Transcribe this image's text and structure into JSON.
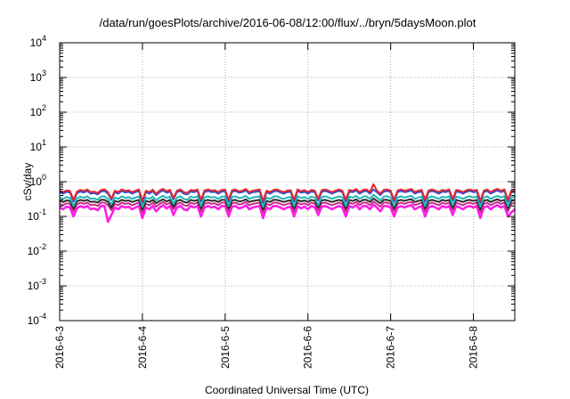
{
  "chart_data": {
    "type": "line",
    "title": "/data/run/goesPlots/archive/2016-06-08/12:00/flux/../bryn/5daysMoon.plot",
    "xlabel": "Coordinated Universal Time (UTC)",
    "ylabel": "cSv/day",
    "y_scale": "log",
    "ylim": [
      0.0001,
      10000
    ],
    "y_ticks": [
      {
        "base": "10",
        "exp": "-4",
        "value": 0.0001
      },
      {
        "base": "10",
        "exp": "-3",
        "value": 0.001
      },
      {
        "base": "10",
        "exp": "-2",
        "value": 0.01
      },
      {
        "base": "10",
        "exp": "-1",
        "value": 0.1
      },
      {
        "base": "10",
        "exp": "0",
        "value": 1
      },
      {
        "base": "10",
        "exp": "1",
        "value": 10
      },
      {
        "base": "10",
        "exp": "2",
        "value": 100
      },
      {
        "base": "10",
        "exp": "3",
        "value": 1000
      },
      {
        "base": "10",
        "exp": "4",
        "value": 10000
      }
    ],
    "x_ticks": [
      "2016-6-3",
      "2016-6-4",
      "2016-6-5",
      "2016-6-6",
      "2016-6-7",
      "2016-6-8"
    ],
    "xlim": [
      "2016-06-03T00:00",
      "2016-06-08T12:00"
    ],
    "grid": true,
    "legend": "none",
    "series": [
      {
        "color": "#e8262b",
        "values": [
          0.55,
          0.5,
          0.56,
          0.54,
          0.3,
          0.52,
          0.58,
          0.54,
          0.6,
          0.5,
          0.52,
          0.47,
          0.58,
          0.6,
          0.5,
          0.33,
          0.55,
          0.5,
          0.6,
          0.54,
          0.57,
          0.5,
          0.55,
          0.6,
          0.28,
          0.55,
          0.5,
          0.59,
          0.45,
          0.56,
          0.62,
          0.53,
          0.58,
          0.34,
          0.55,
          0.6,
          0.5,
          0.47,
          0.58,
          0.55,
          0.6,
          0.3,
          0.56,
          0.6,
          0.55,
          0.57,
          0.5,
          0.58,
          0.59,
          0.3,
          0.57,
          0.6,
          0.53,
          0.55,
          0.62,
          0.5,
          0.55,
          0.57,
          0.6,
          0.28,
          0.55,
          0.5,
          0.58,
          0.6,
          0.54,
          0.5,
          0.55,
          0.57,
          0.3,
          0.6,
          0.53,
          0.57,
          0.5,
          0.58,
          0.55,
          0.32,
          0.57,
          0.6,
          0.55,
          0.5,
          0.55,
          0.6,
          0.55,
          0.3,
          0.58,
          0.55,
          0.62,
          0.5,
          0.58,
          0.6,
          0.5,
          0.85,
          0.56,
          0.45,
          0.58,
          0.6,
          0.55,
          0.3,
          0.56,
          0.6,
          0.55,
          0.58,
          0.62,
          0.5,
          0.55,
          0.58,
          0.3,
          0.56,
          0.6,
          0.55,
          0.5,
          0.58,
          0.55,
          0.6,
          0.32,
          0.58,
          0.55,
          0.5,
          0.57,
          0.6,
          0.55,
          0.58,
          0.28,
          0.55,
          0.6,
          0.5,
          0.57,
          0.62,
          0.55,
          0.6,
          0.3,
          0.55,
          0.58
        ]
      },
      {
        "color": "#2f4fd8",
        "values": [
          0.5,
          0.45,
          0.51,
          0.49,
          0.27,
          0.47,
          0.52,
          0.49,
          0.54,
          0.45,
          0.47,
          0.43,
          0.52,
          0.54,
          0.45,
          0.3,
          0.5,
          0.45,
          0.54,
          0.49,
          0.51,
          0.45,
          0.5,
          0.54,
          0.25,
          0.5,
          0.45,
          0.53,
          0.41,
          0.5,
          0.56,
          0.48,
          0.52,
          0.31,
          0.5,
          0.54,
          0.45,
          0.43,
          0.52,
          0.5,
          0.54,
          0.27,
          0.5,
          0.54,
          0.5,
          0.51,
          0.45,
          0.52,
          0.53,
          0.27,
          0.51,
          0.54,
          0.48,
          0.5,
          0.56,
          0.45,
          0.5,
          0.51,
          0.54,
          0.25,
          0.5,
          0.45,
          0.52,
          0.54,
          0.49,
          0.45,
          0.5,
          0.51,
          0.27,
          0.54,
          0.48,
          0.51,
          0.45,
          0.52,
          0.5,
          0.29,
          0.51,
          0.54,
          0.5,
          0.45,
          0.5,
          0.54,
          0.5,
          0.27,
          0.52,
          0.5,
          0.56,
          0.45,
          0.52,
          0.54,
          0.45,
          0.6,
          0.5,
          0.41,
          0.52,
          0.54,
          0.5,
          0.27,
          0.5,
          0.54,
          0.5,
          0.52,
          0.56,
          0.45,
          0.5,
          0.52,
          0.27,
          0.5,
          0.54,
          0.5,
          0.45,
          0.52,
          0.5,
          0.54,
          0.29,
          0.52,
          0.5,
          0.45,
          0.51,
          0.54,
          0.5,
          0.52,
          0.25,
          0.5,
          0.54,
          0.45,
          0.51,
          0.56,
          0.5,
          0.54,
          0.27,
          0.5,
          0.52
        ]
      },
      {
        "color": "#1fb5b5",
        "values": [
          0.35,
          0.32,
          0.36,
          0.34,
          0.2,
          0.33,
          0.37,
          0.34,
          0.38,
          0.32,
          0.33,
          0.3,
          0.37,
          0.38,
          0.32,
          0.22,
          0.35,
          0.32,
          0.38,
          0.34,
          0.36,
          0.32,
          0.35,
          0.38,
          0.19,
          0.35,
          0.32,
          0.37,
          0.29,
          0.35,
          0.39,
          0.34,
          0.37,
          0.23,
          0.35,
          0.38,
          0.32,
          0.3,
          0.37,
          0.35,
          0.38,
          0.2,
          0.35,
          0.38,
          0.35,
          0.36,
          0.32,
          0.37,
          0.37,
          0.2,
          0.36,
          0.38,
          0.34,
          0.35,
          0.39,
          0.32,
          0.35,
          0.36,
          0.38,
          0.19,
          0.35,
          0.32,
          0.37,
          0.38,
          0.34,
          0.32,
          0.35,
          0.36,
          0.2,
          0.38,
          0.34,
          0.36,
          0.32,
          0.37,
          0.35,
          0.21,
          0.36,
          0.38,
          0.35,
          0.32,
          0.35,
          0.38,
          0.35,
          0.2,
          0.37,
          0.35,
          0.39,
          0.32,
          0.37,
          0.38,
          0.32,
          0.42,
          0.35,
          0.29,
          0.37,
          0.38,
          0.35,
          0.2,
          0.35,
          0.38,
          0.35,
          0.37,
          0.39,
          0.32,
          0.35,
          0.37,
          0.2,
          0.35,
          0.38,
          0.35,
          0.32,
          0.37,
          0.35,
          0.38,
          0.21,
          0.37,
          0.35,
          0.32,
          0.36,
          0.38,
          0.35,
          0.37,
          0.19,
          0.35,
          0.38,
          0.32,
          0.36,
          0.39,
          0.35,
          0.38,
          0.2,
          0.35,
          0.37
        ]
      },
      {
        "color": "#2a2a2a",
        "values": [
          0.28,
          0.26,
          0.29,
          0.28,
          0.17,
          0.27,
          0.3,
          0.28,
          0.3,
          0.26,
          0.27,
          0.25,
          0.3,
          0.3,
          0.26,
          0.18,
          0.28,
          0.26,
          0.3,
          0.28,
          0.29,
          0.26,
          0.28,
          0.3,
          0.16,
          0.28,
          0.26,
          0.3,
          0.24,
          0.28,
          0.31,
          0.27,
          0.3,
          0.19,
          0.28,
          0.3,
          0.26,
          0.25,
          0.3,
          0.28,
          0.3,
          0.17,
          0.28,
          0.3,
          0.28,
          0.29,
          0.26,
          0.3,
          0.3,
          0.17,
          0.29,
          0.3,
          0.27,
          0.28,
          0.31,
          0.26,
          0.28,
          0.29,
          0.3,
          0.16,
          0.28,
          0.26,
          0.3,
          0.3,
          0.28,
          0.26,
          0.28,
          0.29,
          0.17,
          0.3,
          0.27,
          0.29,
          0.26,
          0.3,
          0.28,
          0.18,
          0.29,
          0.3,
          0.28,
          0.26,
          0.28,
          0.3,
          0.28,
          0.17,
          0.3,
          0.28,
          0.31,
          0.26,
          0.3,
          0.3,
          0.26,
          0.33,
          0.28,
          0.24,
          0.3,
          0.3,
          0.28,
          0.17,
          0.28,
          0.3,
          0.28,
          0.3,
          0.31,
          0.26,
          0.28,
          0.3,
          0.17,
          0.28,
          0.3,
          0.28,
          0.26,
          0.3,
          0.28,
          0.3,
          0.18,
          0.3,
          0.28,
          0.26,
          0.29,
          0.3,
          0.28,
          0.3,
          0.16,
          0.28,
          0.3,
          0.26,
          0.29,
          0.31,
          0.28,
          0.3,
          0.17,
          0.28,
          0.3
        ]
      },
      {
        "color": "#cc2a8a",
        "values": [
          0.23,
          0.21,
          0.24,
          0.23,
          0.14,
          0.22,
          0.25,
          0.23,
          0.25,
          0.21,
          0.22,
          0.2,
          0.25,
          0.25,
          0.21,
          0.15,
          0.23,
          0.21,
          0.25,
          0.23,
          0.24,
          0.21,
          0.23,
          0.25,
          0.13,
          0.23,
          0.21,
          0.25,
          0.19,
          0.23,
          0.26,
          0.22,
          0.25,
          0.16,
          0.23,
          0.25,
          0.21,
          0.2,
          0.25,
          0.23,
          0.25,
          0.14,
          0.23,
          0.25,
          0.23,
          0.24,
          0.21,
          0.25,
          0.25,
          0.14,
          0.24,
          0.25,
          0.22,
          0.23,
          0.26,
          0.21,
          0.23,
          0.24,
          0.25,
          0.13,
          0.23,
          0.21,
          0.25,
          0.25,
          0.23,
          0.21,
          0.23,
          0.24,
          0.14,
          0.25,
          0.22,
          0.24,
          0.21,
          0.25,
          0.23,
          0.15,
          0.24,
          0.25,
          0.23,
          0.21,
          0.23,
          0.25,
          0.23,
          0.14,
          0.25,
          0.23,
          0.26,
          0.21,
          0.25,
          0.25,
          0.21,
          0.27,
          0.23,
          0.19,
          0.25,
          0.25,
          0.23,
          0.14,
          0.23,
          0.25,
          0.23,
          0.25,
          0.26,
          0.21,
          0.23,
          0.25,
          0.14,
          0.23,
          0.25,
          0.23,
          0.21,
          0.25,
          0.23,
          0.25,
          0.15,
          0.25,
          0.23,
          0.21,
          0.24,
          0.25,
          0.23,
          0.25,
          0.13,
          0.23,
          0.25,
          0.21,
          0.24,
          0.26,
          0.23,
          0.25,
          0.14,
          0.23,
          0.25
        ]
      },
      {
        "color": "#ff1ee8",
        "values": [
          0.18,
          0.16,
          0.19,
          0.18,
          0.1,
          0.17,
          0.2,
          0.18,
          0.2,
          0.16,
          0.17,
          0.15,
          0.2,
          0.2,
          0.07,
          0.11,
          0.18,
          0.16,
          0.2,
          0.18,
          0.19,
          0.16,
          0.18,
          0.2,
          0.09,
          0.18,
          0.16,
          0.2,
          0.14,
          0.18,
          0.21,
          0.17,
          0.2,
          0.11,
          0.18,
          0.2,
          0.16,
          0.15,
          0.2,
          0.18,
          0.2,
          0.1,
          0.18,
          0.2,
          0.18,
          0.19,
          0.16,
          0.2,
          0.2,
          0.1,
          0.19,
          0.2,
          0.17,
          0.18,
          0.21,
          0.16,
          0.18,
          0.19,
          0.2,
          0.09,
          0.18,
          0.16,
          0.2,
          0.2,
          0.18,
          0.16,
          0.18,
          0.19,
          0.1,
          0.2,
          0.17,
          0.19,
          0.16,
          0.2,
          0.18,
          0.11,
          0.19,
          0.2,
          0.18,
          0.16,
          0.18,
          0.2,
          0.18,
          0.1,
          0.2,
          0.18,
          0.21,
          0.16,
          0.2,
          0.2,
          0.16,
          0.22,
          0.18,
          0.14,
          0.2,
          0.2,
          0.18,
          0.1,
          0.18,
          0.2,
          0.18,
          0.2,
          0.21,
          0.16,
          0.18,
          0.2,
          0.1,
          0.18,
          0.2,
          0.18,
          0.16,
          0.2,
          0.18,
          0.2,
          0.11,
          0.2,
          0.18,
          0.16,
          0.19,
          0.2,
          0.18,
          0.2,
          0.09,
          0.18,
          0.2,
          0.16,
          0.19,
          0.21,
          0.18,
          0.2,
          0.1,
          0.13,
          0.16
        ]
      }
    ]
  }
}
